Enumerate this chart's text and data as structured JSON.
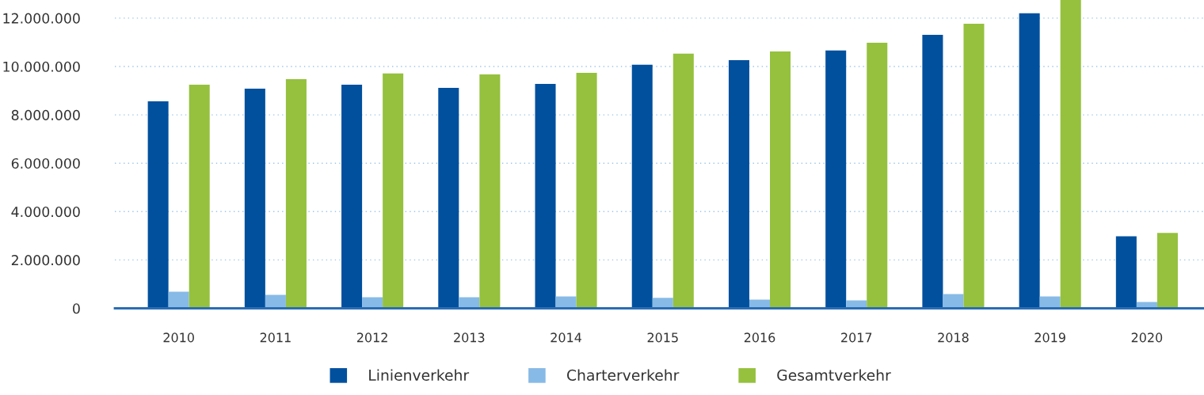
{
  "chart_data": {
    "type": "bar",
    "categories": [
      "2010",
      "2011",
      "2012",
      "2013",
      "2014",
      "2015",
      "2016",
      "2017",
      "2018",
      "2019",
      "2020"
    ],
    "series": [
      {
        "name": "Linienverkehr",
        "color": "#00509e",
        "values": [
          8560000,
          9080000,
          9250000,
          9120000,
          9280000,
          10070000,
          10260000,
          10660000,
          11310000,
          12200000,
          2980000
        ]
      },
      {
        "name": "Charterverkehr",
        "color": "#87bae6",
        "values": [
          690000,
          560000,
          460000,
          460000,
          490000,
          430000,
          360000,
          330000,
          590000,
          490000,
          260000
        ]
      },
      {
        "name": "Gesamtverkehr",
        "color": "#95c13e",
        "values": [
          9250000,
          9480000,
          9710000,
          9670000,
          9740000,
          10530000,
          10620000,
          10980000,
          11770000,
          12750000,
          3120000
        ]
      }
    ],
    "ylim": [
      0,
      12750000
    ],
    "yticks": [
      {
        "value": 0,
        "label": "0"
      },
      {
        "value": 2000000,
        "label": "2.000.000"
      },
      {
        "value": 4000000,
        "label": "4.000.000"
      },
      {
        "value": 6000000,
        "label": "6.000.000"
      },
      {
        "value": 8000000,
        "label": "8.000.000"
      },
      {
        "value": 10000000,
        "label": "10.000.000"
      },
      {
        "value": 12000000,
        "label": "12.000.000"
      }
    ],
    "grid": "y",
    "legend": "bottom"
  }
}
